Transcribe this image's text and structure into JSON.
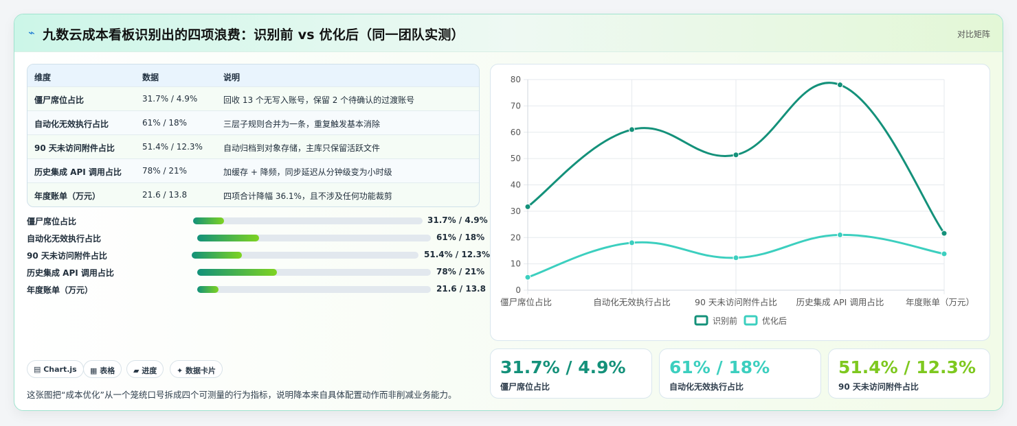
{
  "header": {
    "icon": "sparkle-icon",
    "title": "九数云成本看板识别出的四项浪费：识别前 vs 优化后（同一团队实测）",
    "right_label": "对比矩阵"
  },
  "table": {
    "columns": [
      "维度",
      "数据",
      "说明"
    ],
    "rows": [
      {
        "dim": "僵尸席位占比",
        "data": "31.7% / 4.9%",
        "desc": "回收 13 个无写入账号，保留 2 个待确认的过渡账号"
      },
      {
        "dim": "自动化无效执行占比",
        "data": "61% / 18%",
        "desc": "三层子规则合并为一条，重复触发基本消除"
      },
      {
        "dim": "90 天未访问附件占比",
        "data": "51.4% / 12.3%",
        "desc": "自动归档到对象存储，主库只保留活跃文件"
      },
      {
        "dim": "历史集成 API 调用占比",
        "data": "78% / 21%",
        "desc": "加缓存 + 降频，同步延迟从分钟级变为小时级"
      },
      {
        "dim": "年度账单（万元）",
        "data": "21.6 / 13.8",
        "desc": "四项合计降幅 36.1%，且不涉及任何功能裁剪"
      }
    ]
  },
  "bars": [
    {
      "label": "僵尸席位占比",
      "value": "31.7% / 4.9%",
      "fill": 0.135
    },
    {
      "label": "自动化无效执行占比",
      "value": "61% / 18%",
      "fill": 0.265
    },
    {
      "label": "90 天未访问附件占比",
      "value": "51.4% / 12.3%",
      "fill": 0.22
    },
    {
      "label": "历史集成 API 调用占比",
      "value": "78% / 21%",
      "fill": 0.34
    },
    {
      "label": "年度账单（万元）",
      "value": "21.6 / 13.8",
      "fill": 0.09
    }
  ],
  "chips": [
    "▤ Chart.js",
    "▦ 表格",
    "▰ 进度",
    "✦ 数据卡片"
  ],
  "note": "这张图把“成本优化”从一个笼统口号拆成四个可测量的行为指标，说明降本来自具体配置动作而非削减业务能力。",
  "kpis": [
    {
      "value": "31.7% / 4.9%",
      "label": "僵尸席位占比",
      "color": "#14917a"
    },
    {
      "value": "61% / 18%",
      "label": "自动化无效执行占比",
      "color": "#3ccfbf"
    },
    {
      "value": "51.4% / 12.3%",
      "label": "90 天未访问附件占比",
      "color": "#7ec81f"
    }
  ],
  "chart_data": {
    "type": "line",
    "categories": [
      "僵尸席位占比",
      "自动化无效执行占比",
      "90 天未访问附件占比",
      "历史集成 API 调用占比",
      "年度账单（万元）"
    ],
    "series": [
      {
        "name": "识别前",
        "values": [
          31.7,
          61,
          51.4,
          78,
          21.6
        ],
        "color": "#14917a"
      },
      {
        "name": "优化后",
        "values": [
          4.9,
          18,
          12.3,
          21,
          13.8
        ],
        "color": "#3ccfbf"
      }
    ],
    "ylim": [
      0,
      80
    ],
    "yticks": [
      0,
      10,
      20,
      30,
      40,
      50,
      60,
      70,
      80
    ],
    "grid": true,
    "legend": "bottom"
  }
}
